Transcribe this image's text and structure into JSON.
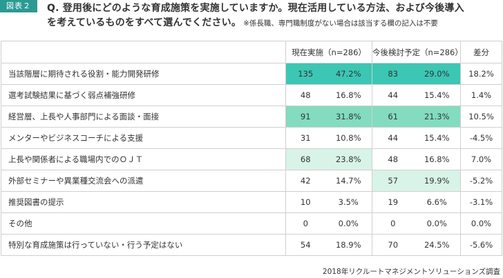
{
  "header": {
    "badge": "図表２",
    "question_line1": "Q. 登用後にどのような育成施策を実施していますか。現在活用している方法、および今後導入",
    "question_line2": "を考えているものをすべて選んでください。",
    "note": "※係長職、専門職制度がない場合は該当する欄の記入は不要"
  },
  "table": {
    "headers": {
      "current": "現在実施（n=286）",
      "planned": "今後検討予定（n=286）",
      "diff": "差分"
    },
    "rows": [
      {
        "label": "当該階層に期待される役割・能力開発研修",
        "cur_n": "135",
        "cur_p": "47.2%",
        "plan_n": "83",
        "plan_p": "29.0%",
        "diff": "18.2%"
      },
      {
        "label": "選考試験結果に基づく弱点補強研修",
        "cur_n": "48",
        "cur_p": "16.8%",
        "plan_n": "44",
        "plan_p": "15.4%",
        "diff": "1.4%"
      },
      {
        "label": "経営層、上長や人事部門による面談・面接",
        "cur_n": "91",
        "cur_p": "31.8%",
        "plan_n": "61",
        "plan_p": "21.3%",
        "diff": "10.5%"
      },
      {
        "label": "メンターやビジネスコーチによる支援",
        "cur_n": "31",
        "cur_p": "10.8%",
        "plan_n": "44",
        "plan_p": "15.4%",
        "diff": "-4.5%"
      },
      {
        "label": "上長や関係者による職場内でのＯＪＴ",
        "cur_n": "68",
        "cur_p": "23.8%",
        "plan_n": "48",
        "plan_p": "16.8%",
        "diff": "7.0%"
      },
      {
        "label": "外部セミナーや異業種交流会への派遣",
        "cur_n": "42",
        "cur_p": "14.7%",
        "plan_n": "57",
        "plan_p": "19.9%",
        "diff": "-5.2%"
      },
      {
        "label": "推奨図書の提示",
        "cur_n": "10",
        "cur_p": "3.5%",
        "plan_n": "19",
        "plan_p": "6.6%",
        "diff": "-3.1%"
      },
      {
        "label": "その他",
        "cur_n": "0",
        "cur_p": "0.0%",
        "plan_n": "0",
        "plan_p": "0.0%",
        "diff": "0.0%"
      },
      {
        "label": "特別な育成施策は行っていない・行う予定はない",
        "cur_n": "54",
        "cur_p": "18.9%",
        "plan_n": "70",
        "plan_p": "24.5%",
        "diff": "-5.6%"
      }
    ]
  },
  "source": "2018年リクルートマネジメントソリューションズ調査"
}
